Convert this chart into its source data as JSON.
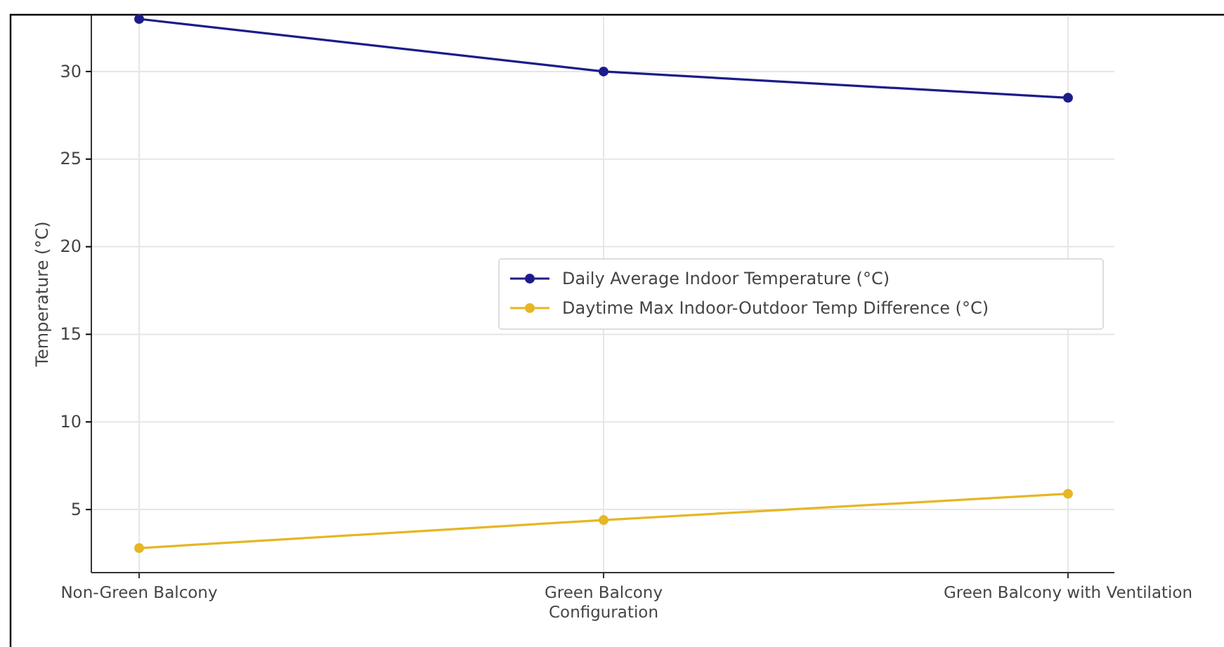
{
  "chart_data": {
    "type": "line",
    "ylabel": "Temperature (°C)",
    "categories": [
      "Non-Green Balcony",
      "Green Balcony\nConfiguration",
      "Green Balcony with Ventilation"
    ],
    "series": [
      {
        "name": "Daily Average Indoor Temperature (°C)",
        "color": "#1c1c8a",
        "values": [
          33.0,
          30.0,
          28.5
        ]
      },
      {
        "name": "Daytime Max Indoor-Outdoor Temp Difference (°C)",
        "color": "#e6b624",
        "values": [
          2.8,
          4.4,
          5.9
        ]
      }
    ],
    "ylim": [
      1.4,
      33.2
    ],
    "yticks": [
      5,
      10,
      15,
      20,
      25,
      30
    ],
    "grid": true,
    "legend": "right",
    "marker": "circle",
    "line_style": "solid"
  }
}
